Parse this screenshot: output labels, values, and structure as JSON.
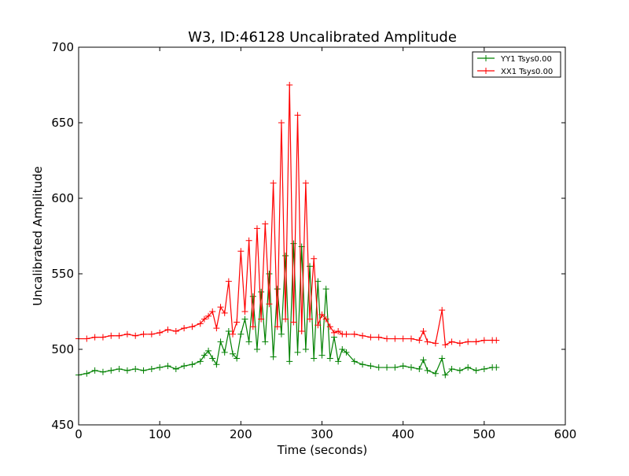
{
  "chart_data": {
    "type": "line",
    "title": "W3, ID:46128 Uncalibrated Amplitude",
    "xlabel": "Time (seconds)",
    "ylabel": "Uncalibrated Amplitude",
    "xlim": [
      0,
      600
    ],
    "ylim": [
      450,
      700
    ],
    "xticks": [
      0,
      100,
      200,
      300,
      400,
      500,
      600
    ],
    "yticks": [
      450,
      500,
      550,
      600,
      650,
      700
    ],
    "grid": false,
    "legend_position": "top-right",
    "marker": "plus",
    "series": [
      {
        "name": "YY1 Tsys0.00",
        "color": "#008000",
        "x": [
          0,
          10,
          20,
          30,
          40,
          50,
          60,
          70,
          80,
          90,
          100,
          110,
          120,
          130,
          140,
          150,
          155,
          160,
          165,
          170,
          175,
          180,
          185,
          190,
          195,
          200,
          205,
          210,
          215,
          220,
          225,
          230,
          235,
          240,
          245,
          250,
          255,
          260,
          265,
          270,
          275,
          280,
          285,
          290,
          295,
          300,
          305,
          310,
          315,
          320,
          325,
          330,
          340,
          350,
          360,
          370,
          380,
          390,
          400,
          410,
          420,
          425,
          430,
          440,
          448,
          452,
          460,
          470,
          480,
          490,
          500,
          510,
          515
        ],
        "y": [
          483,
          484,
          486,
          485,
          486,
          487,
          486,
          487,
          486,
          487,
          488,
          489,
          487,
          489,
          490,
          492,
          496,
          499,
          494,
          490,
          505,
          498,
          512,
          497,
          494,
          510,
          520,
          505,
          535,
          500,
          538,
          505,
          550,
          495,
          540,
          510,
          562,
          492,
          570,
          498,
          568,
          500,
          555,
          494,
          545,
          496,
          540,
          494,
          508,
          492,
          500,
          498,
          492,
          490,
          489,
          488,
          488,
          488,
          489,
          488,
          487,
          493,
          486,
          484,
          494,
          483,
          487,
          486,
          488,
          486,
          487,
          488,
          488
        ]
      },
      {
        "name": "XX1 Tsys0.00",
        "color": "#ff0000",
        "x": [
          0,
          10,
          20,
          30,
          40,
          50,
          60,
          70,
          80,
          90,
          100,
          110,
          120,
          130,
          140,
          150,
          155,
          160,
          165,
          170,
          175,
          180,
          185,
          190,
          195,
          200,
          205,
          210,
          215,
          220,
          225,
          230,
          235,
          240,
          245,
          250,
          255,
          260,
          265,
          270,
          275,
          280,
          285,
          290,
          295,
          300,
          305,
          310,
          315,
          320,
          325,
          330,
          340,
          350,
          360,
          370,
          380,
          390,
          400,
          410,
          420,
          425,
          430,
          440,
          448,
          452,
          460,
          470,
          480,
          490,
          500,
          510,
          515
        ],
        "y": [
          507,
          507,
          508,
          508,
          509,
          509,
          510,
          509,
          510,
          510,
          511,
          513,
          512,
          514,
          515,
          517,
          520,
          522,
          525,
          514,
          528,
          524,
          545,
          510,
          518,
          565,
          525,
          572,
          515,
          580,
          520,
          583,
          530,
          610,
          515,
          650,
          520,
          675,
          518,
          655,
          512,
          610,
          520,
          560,
          516,
          523,
          520,
          515,
          511,
          512,
          510,
          510,
          510,
          509,
          508,
          508,
          507,
          507,
          507,
          507,
          506,
          512,
          505,
          504,
          526,
          503,
          505,
          504,
          505,
          505,
          506,
          506,
          506
        ]
      }
    ]
  }
}
